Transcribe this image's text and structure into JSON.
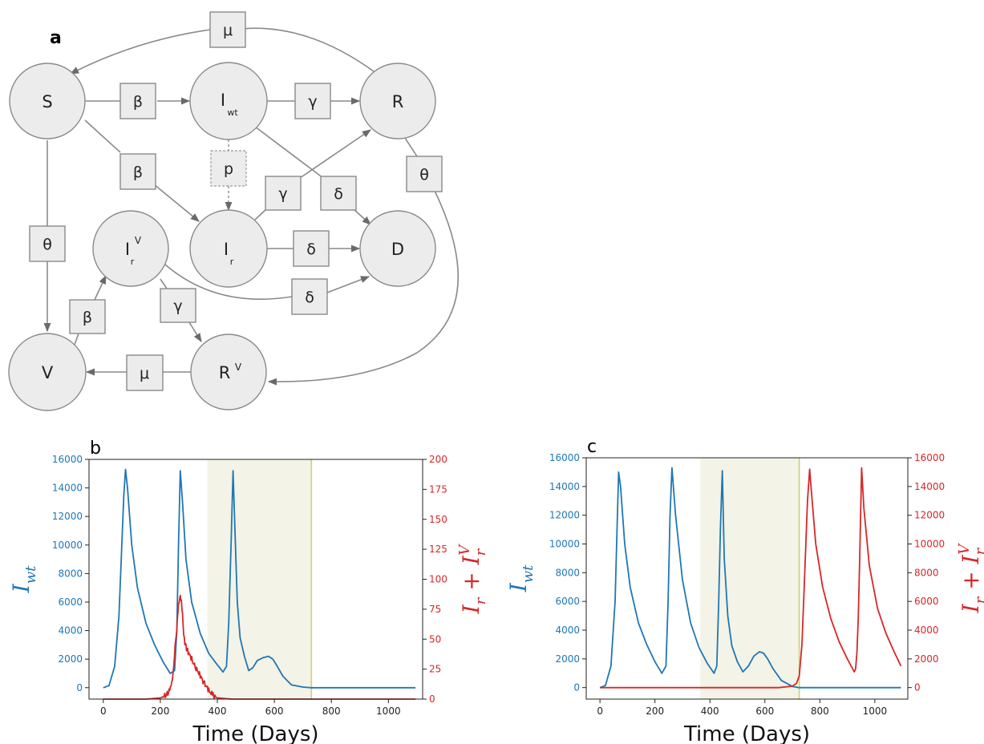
{
  "panel_a": {
    "letter": "a",
    "nodes": [
      {
        "id": "S",
        "label": "S",
        "sub": "",
        "sup": ""
      },
      {
        "id": "Iwt",
        "label": "I",
        "sub": "wt",
        "sup": ""
      },
      {
        "id": "R",
        "label": "R",
        "sub": "",
        "sup": ""
      },
      {
        "id": "Ir",
        "label": "I",
        "sub": "r",
        "sup": ""
      },
      {
        "id": "D",
        "label": "D",
        "sub": "",
        "sup": ""
      },
      {
        "id": "IrV",
        "label": "I",
        "sub": "r",
        "sup": "V"
      },
      {
        "id": "V",
        "label": "V",
        "sub": "",
        "sup": ""
      },
      {
        "id": "RV",
        "label": "R",
        "sub": "",
        "sup": "V"
      }
    ],
    "rates": [
      {
        "id": "mu_top",
        "label": "μ"
      },
      {
        "id": "beta_SI",
        "label": "β"
      },
      {
        "id": "gamma_IR",
        "label": "γ"
      },
      {
        "id": "beta_SIr",
        "label": "β"
      },
      {
        "id": "p",
        "label": "p"
      },
      {
        "id": "gamma_IrR",
        "label": "γ"
      },
      {
        "id": "delta_ID",
        "label": "δ"
      },
      {
        "id": "theta_R",
        "label": "θ"
      },
      {
        "id": "theta_S",
        "label": "θ"
      },
      {
        "id": "delta_IrD",
        "label": "δ"
      },
      {
        "id": "delta_IrVD",
        "label": "δ"
      },
      {
        "id": "gamma_IrV",
        "label": "γ"
      },
      {
        "id": "beta_V",
        "label": "β"
      },
      {
        "id": "mu_bottom",
        "label": "μ"
      }
    ]
  },
  "colors": {
    "blue": "#1f77b4",
    "red": "#d62728",
    "shade": "#f3f3e7",
    "vline": "#c8d46a"
  },
  "chart_data": [
    {
      "letter": "b",
      "type": "line",
      "xlabel": "Time (Days)",
      "ylabel_left": "I_wt",
      "ylabel_right": "I_r + I_r^V",
      "xlim": [
        -50,
        1120
      ],
      "xticks": [
        0,
        200,
        400,
        600,
        800,
        1000
      ],
      "ylim_left": [
        -800,
        16000
      ],
      "yticks_left": [
        0,
        2000,
        4000,
        6000,
        8000,
        10000,
        12000,
        14000,
        16000
      ],
      "ylim_right": [
        0,
        200
      ],
      "yticks_right": [
        0,
        25,
        50,
        75,
        100,
        125,
        150,
        175,
        200
      ],
      "shaded_region": [
        365,
        730
      ],
      "vline": 730,
      "series": [
        {
          "axis": "left",
          "color": "#1f77b4",
          "x": [
            0,
            20,
            40,
            55,
            65,
            72,
            78,
            85,
            100,
            120,
            150,
            180,
            210,
            235,
            250,
            258,
            264,
            270,
            278,
            290,
            310,
            340,
            370,
            400,
            420,
            432,
            440,
            448,
            455,
            462,
            470,
            480,
            495,
            510,
            525,
            540,
            560,
            580,
            595,
            610,
            630,
            660,
            700,
            730,
            800,
            900,
            1000,
            1095
          ],
          "y": [
            0,
            150,
            1500,
            5000,
            10000,
            13500,
            15300,
            14000,
            10000,
            7000,
            4500,
            3000,
            1800,
            1000,
            1200,
            4000,
            10000,
            15200,
            13000,
            9000,
            6000,
            3800,
            2400,
            1600,
            1100,
            1500,
            4500,
            10000,
            15200,
            11000,
            6000,
            3500,
            2200,
            1200,
            1400,
            1900,
            2100,
            2200,
            2000,
            1500,
            800,
            200,
            40,
            0,
            0,
            0,
            0,
            0
          ]
        },
        {
          "axis": "right",
          "color": "#d62728",
          "x": [
            0,
            150,
            200,
            220,
            235,
            245,
            252,
            258,
            262,
            266,
            270,
            274,
            278,
            282,
            286,
            292,
            300,
            310,
            320,
            330,
            340,
            350,
            360,
            370,
            385,
            400,
            450,
            600,
            800,
            1000,
            1095
          ],
          "y": [
            0,
            0,
            1,
            3,
            8,
            20,
            45,
            60,
            75,
            82,
            85,
            80,
            70,
            55,
            48,
            42,
            38,
            33,
            28,
            24,
            20,
            15,
            11,
            7,
            3,
            1,
            0,
            0,
            0,
            0,
            0
          ]
        }
      ]
    },
    {
      "letter": "c",
      "type": "line",
      "xlabel": "Time (Days)",
      "ylabel_left": "I_wt",
      "ylabel_right": "I_r + I_r^V",
      "xlim": [
        -50,
        1120
      ],
      "xticks": [
        0,
        200,
        400,
        600,
        800,
        1000
      ],
      "ylim_left": [
        -800,
        16000
      ],
      "yticks_left": [
        0,
        2000,
        4000,
        6000,
        8000,
        10000,
        12000,
        14000,
        16000
      ],
      "ylim_right": [
        -800,
        16000
      ],
      "yticks_right": [
        0,
        2000,
        4000,
        6000,
        8000,
        10000,
        12000,
        14000,
        16000
      ],
      "shaded_region": [
        365,
        725
      ],
      "vline": 725,
      "series": [
        {
          "axis": "left",
          "color": "#1f77b4",
          "x": [
            0,
            20,
            40,
            55,
            62,
            68,
            75,
            90,
            110,
            140,
            170,
            200,
            225,
            240,
            248,
            255,
            262,
            275,
            300,
            330,
            360,
            390,
            415,
            425,
            432,
            438,
            445,
            452,
            465,
            480,
            500,
            520,
            540,
            560,
            580,
            595,
            610,
            630,
            660,
            700,
            725,
            800,
            900,
            1000,
            1095
          ],
          "y": [
            0,
            150,
            1500,
            6000,
            11000,
            15000,
            14000,
            10000,
            7000,
            4500,
            3000,
            1800,
            1000,
            1500,
            6000,
            12000,
            15300,
            12000,
            7500,
            4500,
            2800,
            1700,
            1000,
            1500,
            6000,
            11000,
            15100,
            9000,
            5000,
            2900,
            1800,
            1100,
            1500,
            2200,
            2500,
            2400,
            2000,
            1300,
            500,
            80,
            0,
            0,
            0,
            0,
            0
          ]
        },
        {
          "axis": "right",
          "color": "#d62728",
          "x": [
            0,
            500,
            650,
            700,
            715,
            725,
            735,
            745,
            755,
            763,
            770,
            785,
            810,
            840,
            870,
            900,
            925,
            930,
            935,
            940,
            945,
            952,
            960,
            980,
            1010,
            1040,
            1070,
            1095
          ],
          "y": [
            0,
            0,
            0,
            100,
            300,
            800,
            3000,
            8000,
            13000,
            15200,
            13500,
            10000,
            7000,
            4800,
            3200,
            2000,
            1100,
            1300,
            2500,
            5000,
            9000,
            15300,
            12500,
            8500,
            5500,
            3800,
            2500,
            1500
          ]
        }
      ]
    }
  ]
}
